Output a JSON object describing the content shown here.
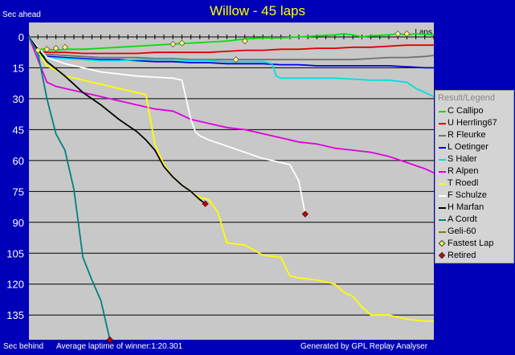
{
  "title": "Willow - 45 laps",
  "top_left_label": "Sec ahead",
  "bottom_left_label": "Sec behind",
  "avg_laptime": "Average laptime of winner:1:20.301",
  "generated_by": "Generated by GPL Replay Analyser",
  "colors": {
    "background": "#0000b8",
    "plot_bg": "#c8c8c8",
    "title": "#ffff00"
  },
  "chart_data": {
    "type": "line",
    "title": "Willow - 45 laps",
    "xlabel": "Laps",
    "ylabel": "Sec behind",
    "xlim": [
      0,
      45
    ],
    "ylim": [
      -7,
      147
    ],
    "y_ticks": [
      0,
      15,
      30,
      45,
      60,
      75,
      90,
      105,
      120,
      135
    ],
    "y_tick_labels": [
      "0",
      "15",
      "30",
      "45",
      "60",
      "75",
      "90",
      "105",
      "120",
      "135"
    ],
    "grid": true,
    "legend_position": "right",
    "legend_title": "Result/Legend",
    "series": [
      {
        "name": "C Callipo",
        "color": "#00e000",
        "points": [
          [
            0,
            0
          ],
          [
            1,
            6
          ],
          [
            2,
            6
          ],
          [
            3,
            6.5
          ],
          [
            4,
            6
          ],
          [
            6,
            6
          ],
          [
            8,
            5.5
          ],
          [
            10,
            5
          ],
          [
            12,
            4.5
          ],
          [
            14,
            4
          ],
          [
            16,
            3.5
          ],
          [
            18,
            3
          ],
          [
            20,
            2.5
          ],
          [
            22,
            2
          ],
          [
            24,
            1
          ],
          [
            26,
            0.5
          ],
          [
            28,
            0.5
          ],
          [
            30,
            0
          ],
          [
            32,
            -0.5
          ],
          [
            34,
            -1
          ],
          [
            35,
            -1.5
          ],
          [
            36,
            -1
          ],
          [
            37,
            0
          ],
          [
            38,
            -0.5
          ],
          [
            40,
            -1
          ],
          [
            41,
            -1.5
          ],
          [
            42,
            -1
          ],
          [
            43,
            -1.5
          ],
          [
            45,
            -1
          ]
        ]
      },
      {
        "name": "U Herrling67",
        "color": "#e00000",
        "points": [
          [
            0,
            0
          ],
          [
            1,
            7
          ],
          [
            2,
            7.5
          ],
          [
            4,
            7.5
          ],
          [
            6,
            8
          ],
          [
            8,
            8
          ],
          [
            10,
            8
          ],
          [
            12,
            8
          ],
          [
            14,
            7.5
          ],
          [
            16,
            7.5
          ],
          [
            18,
            7.5
          ],
          [
            20,
            7.5
          ],
          [
            22,
            7
          ],
          [
            24,
            6.5
          ],
          [
            26,
            6.5
          ],
          [
            28,
            6
          ],
          [
            30,
            6
          ],
          [
            32,
            5.5
          ],
          [
            34,
            5.5
          ],
          [
            36,
            5
          ],
          [
            38,
            5
          ],
          [
            40,
            4.5
          ],
          [
            42,
            4
          ],
          [
            44,
            4
          ],
          [
            45,
            4
          ]
        ]
      },
      {
        "name": "R Fleurke",
        "color": "#707070",
        "points": [
          [
            0,
            0
          ],
          [
            1,
            8
          ],
          [
            2,
            8.5
          ],
          [
            4,
            9
          ],
          [
            6,
            9.5
          ],
          [
            8,
            10
          ],
          [
            10,
            10
          ],
          [
            12,
            10
          ],
          [
            14,
            10.5
          ],
          [
            16,
            10.5
          ],
          [
            18,
            11
          ],
          [
            20,
            11
          ],
          [
            22,
            11
          ],
          [
            24,
            11
          ],
          [
            26,
            11
          ],
          [
            28,
            11
          ],
          [
            30,
            11
          ],
          [
            32,
            11
          ],
          [
            34,
            11
          ],
          [
            36,
            11
          ],
          [
            38,
            10.5
          ],
          [
            40,
            10
          ],
          [
            42,
            10
          ],
          [
            44,
            9.5
          ],
          [
            45,
            9
          ]
        ]
      },
      {
        "name": "L Oetinger",
        "color": "#0000e0",
        "points": [
          [
            0,
            0
          ],
          [
            1,
            9
          ],
          [
            2,
            9.5
          ],
          [
            4,
            10
          ],
          [
            6,
            10.5
          ],
          [
            8,
            11
          ],
          [
            10,
            11
          ],
          [
            12,
            11.5
          ],
          [
            14,
            12
          ],
          [
            16,
            12
          ],
          [
            18,
            12.5
          ],
          [
            20,
            12.5
          ],
          [
            22,
            13
          ],
          [
            24,
            13
          ],
          [
            26,
            13
          ],
          [
            28,
            13.5
          ],
          [
            30,
            13.5
          ],
          [
            32,
            14
          ],
          [
            34,
            14
          ],
          [
            36,
            14
          ],
          [
            38,
            14
          ],
          [
            40,
            14
          ],
          [
            42,
            14.5
          ],
          [
            44,
            15
          ],
          [
            45,
            15
          ]
        ]
      },
      {
        "name": "S Haler",
        "color": "#00e0e0",
        "points": [
          [
            0,
            0
          ],
          [
            1,
            9.5
          ],
          [
            2,
            10
          ],
          [
            4,
            10.5
          ],
          [
            6,
            11
          ],
          [
            8,
            11.5
          ],
          [
            10,
            11.5
          ],
          [
            12,
            11
          ],
          [
            14,
            11
          ],
          [
            16,
            11
          ],
          [
            18,
            11.5
          ],
          [
            20,
            11.5
          ],
          [
            22,
            12
          ],
          [
            24,
            12
          ],
          [
            26,
            12
          ],
          [
            27,
            13
          ],
          [
            27.5,
            19
          ],
          [
            28,
            20
          ],
          [
            30,
            20
          ],
          [
            32,
            20
          ],
          [
            34,
            20
          ],
          [
            36,
            20.5
          ],
          [
            38,
            21
          ],
          [
            40,
            21
          ],
          [
            42,
            22
          ],
          [
            43,
            25
          ],
          [
            44,
            27
          ],
          [
            45,
            29
          ]
        ]
      },
      {
        "name": "R Alpen",
        "color": "#e000e0",
        "points": [
          [
            0,
            0
          ],
          [
            2,
            22
          ],
          [
            3,
            24
          ],
          [
            4,
            25
          ],
          [
            6,
            27
          ],
          [
            8,
            29
          ],
          [
            10,
            31
          ],
          [
            12,
            33
          ],
          [
            14,
            35
          ],
          [
            16,
            36
          ],
          [
            18,
            40
          ],
          [
            20,
            42
          ],
          [
            22,
            44
          ],
          [
            24,
            45
          ],
          [
            26,
            47
          ],
          [
            28,
            49
          ],
          [
            30,
            51
          ],
          [
            32,
            52
          ],
          [
            34,
            54
          ],
          [
            36,
            55
          ],
          [
            38,
            56
          ],
          [
            40,
            58
          ],
          [
            42,
            61
          ],
          [
            44,
            64
          ],
          [
            45,
            66
          ]
        ]
      },
      {
        "name": "T Roedl",
        "color": "#ffff00",
        "points": [
          [
            0,
            0
          ],
          [
            2,
            14
          ],
          [
            3,
            16
          ],
          [
            4,
            19
          ],
          [
            6,
            21
          ],
          [
            8,
            23
          ],
          [
            10,
            25
          ],
          [
            12,
            27
          ],
          [
            13,
            28
          ],
          [
            14,
            52
          ],
          [
            15,
            62
          ],
          [
            16,
            68
          ],
          [
            17,
            72
          ],
          [
            18,
            75
          ],
          [
            19,
            78
          ],
          [
            20,
            79
          ],
          [
            21,
            85
          ],
          [
            22,
            100
          ],
          [
            24,
            101
          ],
          [
            26,
            106
          ],
          [
            28,
            107
          ],
          [
            29,
            116
          ],
          [
            30,
            117
          ],
          [
            32,
            118
          ],
          [
            34,
            120
          ],
          [
            35,
            124
          ],
          [
            36,
            126
          ],
          [
            37,
            131
          ],
          [
            38,
            135
          ],
          [
            40,
            135
          ],
          [
            42,
            137
          ],
          [
            44,
            138
          ],
          [
            45,
            138
          ]
        ]
      },
      {
        "name": "F Schulze",
        "color": "#ffffff",
        "points": [
          [
            0,
            0
          ],
          [
            2,
            10
          ],
          [
            4,
            13
          ],
          [
            6,
            15
          ],
          [
            8,
            17
          ],
          [
            10,
            18
          ],
          [
            12,
            19
          ],
          [
            14,
            19.5
          ],
          [
            16,
            20
          ],
          [
            17,
            21
          ],
          [
            18,
            40
          ],
          [
            18.5,
            46
          ],
          [
            19,
            48
          ],
          [
            20,
            50
          ],
          [
            22,
            53
          ],
          [
            24,
            56
          ],
          [
            26,
            59
          ],
          [
            28,
            61
          ],
          [
            29,
            62
          ],
          [
            30,
            70
          ],
          [
            30.7,
            86
          ]
        ]
      },
      {
        "name": "H Marfan",
        "color": "#000000",
        "points": [
          [
            0,
            0
          ],
          [
            1,
            6
          ],
          [
            2,
            12
          ],
          [
            4,
            19
          ],
          [
            6,
            27
          ],
          [
            8,
            33
          ],
          [
            10,
            40
          ],
          [
            12,
            46
          ],
          [
            13,
            50
          ],
          [
            14,
            55
          ],
          [
            15,
            63
          ],
          [
            16,
            68
          ],
          [
            17,
            72
          ],
          [
            18,
            75
          ],
          [
            19,
            79
          ],
          [
            19.6,
            81
          ]
        ]
      },
      {
        "name": "A Cordt",
        "color": "#008080",
        "points": [
          [
            0,
            0
          ],
          [
            1,
            8
          ],
          [
            2,
            30
          ],
          [
            3,
            47
          ],
          [
            4,
            55
          ],
          [
            5,
            74
          ],
          [
            6,
            107
          ],
          [
            7,
            118
          ],
          [
            8,
            128
          ],
          [
            9,
            147
          ]
        ]
      },
      {
        "name": "Geli-60",
        "color": "#808000",
        "points": []
      }
    ],
    "fastest_laps": [
      [
        1,
        6.5
      ],
      [
        2,
        6
      ],
      [
        3,
        5.5
      ],
      [
        4,
        5
      ],
      [
        16,
        3.5
      ],
      [
        17,
        3
      ],
      [
        23,
        11
      ],
      [
        24,
        2
      ],
      [
        41,
        -1.5
      ],
      [
        42,
        -1.5
      ]
    ],
    "retired": [
      [
        9,
        147
      ],
      [
        19.6,
        81
      ],
      [
        30.7,
        86
      ]
    ],
    "legend_extra": [
      "Fastest Lap",
      "Retired"
    ]
  }
}
